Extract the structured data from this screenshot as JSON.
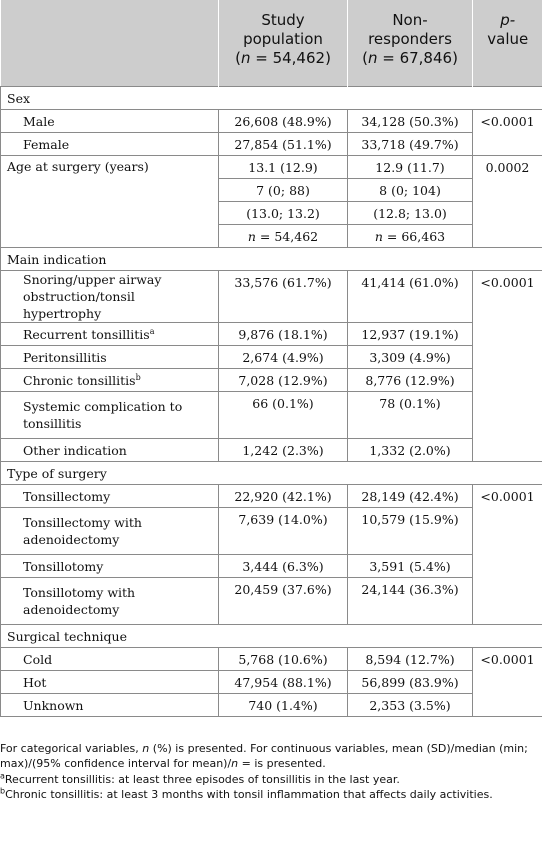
{
  "header": {
    "col1": "",
    "study": {
      "line1": "Study",
      "line2": "population",
      "n": "54,462"
    },
    "nonresp": {
      "line1": "Non-",
      "line2": "responders",
      "n": "67,846"
    },
    "pvalue": {
      "line1": "p-",
      "line2": "value"
    }
  },
  "sections": {
    "sex": {
      "title": "Sex",
      "male": {
        "label": "Male",
        "study": "26,608 (48.9%)",
        "non": "34,128 (50.3%)"
      },
      "female": {
        "label": "Female",
        "study": "27,854 (51.1%)",
        "non": "33,718 (49.7%)"
      },
      "p": "<0.0001"
    },
    "age": {
      "label": "Age at surgery (years)",
      "mean": {
        "study": "13.1 (12.9)",
        "non": "12.9 (11.7)"
      },
      "median": {
        "study": "7 (0; 88)",
        "non": "8 (0; 104)"
      },
      "ci": {
        "study": "(13.0; 13.2)",
        "non": "(12.8; 13.0)"
      },
      "n": {
        "prefix": "n",
        "study": " = 54,462",
        "non": " = 66,463"
      },
      "p": "0.0002"
    },
    "indication": {
      "title": "Main indication",
      "rows": [
        {
          "label": "Snoring/upper airway obstruction/tonsil hypertrophy",
          "study": "33,576 (61.7%)",
          "non": "41,414 (61.0%)"
        },
        {
          "label": "Recurrent tonsillitis",
          "sup": "a",
          "study": "9,876 (18.1%)",
          "non": "12,937 (19.1%)"
        },
        {
          "label": "Peritonsillitis",
          "study": "2,674 (4.9%)",
          "non": "3,309 (4.9%)"
        },
        {
          "label": "Chronic tonsillitis",
          "sup": "b",
          "study": "7,028 (12.9%)",
          "non": "8,776 (12.9%)"
        },
        {
          "label": "Systemic complication to tonsillitis",
          "study": "66 (0.1%)",
          "non": "78 (0.1%)"
        },
        {
          "label": "Other indication",
          "study": "1,242 (2.3%)",
          "non": "1,332 (2.0%)"
        }
      ],
      "p": "<0.0001"
    },
    "surgery": {
      "title": "Type of surgery",
      "rows": [
        {
          "label": "Tonsillectomy",
          "study": "22,920 (42.1%)",
          "non": "28,149 (42.4%)"
        },
        {
          "label": "Tonsillectomy with adenoidectomy",
          "study": "7,639 (14.0%)",
          "non": "10,579 (15.9%)"
        },
        {
          "label": "Tonsillotomy",
          "study": "3,444 (6.3%)",
          "non": "3,591 (5.4%)"
        },
        {
          "label": "Tonsillotomy with adenoidectomy",
          "study": "20,459 (37.6%)",
          "non": "24,144 (36.3%)"
        }
      ],
      "p": "<0.0001"
    },
    "technique": {
      "title": "Surgical technique",
      "rows": [
        {
          "label": "Cold",
          "study": "5,768 (10.6%)",
          "non": "8,594 (12.7%)"
        },
        {
          "label": "Hot",
          "study": "47,954 (88.1%)",
          "non": "56,899 (83.9%)"
        },
        {
          "label": "Unknown",
          "study": "740 (1.4%)",
          "non": "2,353 (3.5%)"
        }
      ],
      "p": "<0.0001"
    }
  },
  "footnotes": {
    "note1_a": "For categorical variables, ",
    "note1_n": "n",
    "note1_b": " (%) is presented. For continuous variables, mean (SD)/median (min; max)/(95% confidence interval for mean)/",
    "note1_n2": "n",
    "note1_c": " = is presented.",
    "a_mark": "a",
    "a_text": "Recurrent tonsillitis: at least three episodes of tonsillitis in the last year.",
    "b_mark": "b",
    "b_text": "Chronic tonsillitis: at least 3 months with tonsil inflammation that affects daily activities."
  }
}
